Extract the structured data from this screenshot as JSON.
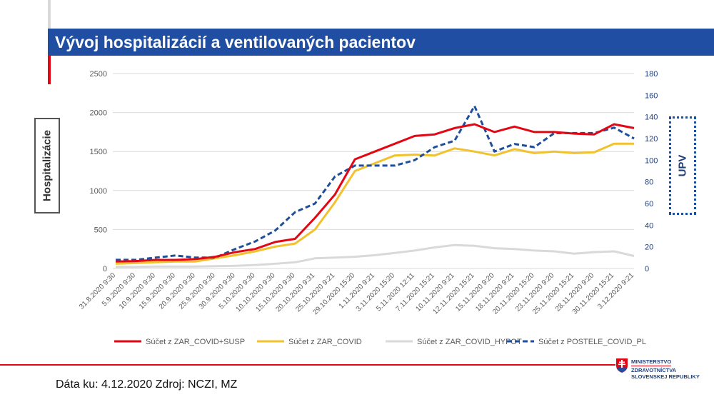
{
  "title": "Vývoj hospitalizácií a ventilovaných pacientov",
  "left_box_label": "Hospitalizácie",
  "right_box_label": "UPV",
  "footer": "Dáta ku: 4.12.2020 Zdroj: NCZI, MZ",
  "logo": {
    "line1": "MINISTERSTVO",
    "line2": "ZDRAVOTNÍCTVA",
    "line3": "SLOVENSKEJ REPUBLIKY"
  },
  "chart_data": {
    "type": "line",
    "title": "",
    "grid": true,
    "legend_position": "bottom",
    "y_left": {
      "range": [
        0,
        2500
      ],
      "ticks": [
        0,
        500,
        1000,
        1500,
        2000,
        2500
      ]
    },
    "y_right": {
      "range": [
        0,
        180
      ],
      "ticks": [
        0,
        20,
        40,
        60,
        80,
        100,
        120,
        140,
        160,
        180
      ]
    },
    "categories": [
      "31.8.2020 9:30",
      "5.9.2020 9:30",
      "10.9.2020 9:30",
      "15.9.2020 9:30",
      "20.9.2020 9:30",
      "25.9.2020 9:30",
      "30.9.2020 9:30",
      "5.10.2020 9:30",
      "10.10.2020 9:30",
      "15.10.2020 9:30",
      "20.10.2020 9:31",
      "25.10.2020 9:21",
      "29.10.2020 15:20",
      "1.11.2020 9:21",
      "3.11.2020 15:20",
      "5.11.2020 12:11",
      "7.11.2020 15:21",
      "10.11.2020 9:21",
      "12.11.2020 15:21",
      "15.11.2020 9:20",
      "18.11.2020 9:21",
      "20.11.2020 15:20",
      "23.11.2020 9:20",
      "25.11.2020 15:21",
      "28.11.2020 9:20",
      "30.11.2020 15:21",
      "3.12.2020 9:21"
    ],
    "series": [
      {
        "name": "Súčet z ZAR_COVID+SUSP",
        "axis": "left",
        "color": "#e30613",
        "style": "solid",
        "values": [
          90,
          95,
          110,
          110,
          120,
          150,
          210,
          250,
          340,
          380,
          650,
          950,
          1400,
          1500,
          1600,
          1700,
          1720,
          1800,
          1850,
          1750,
          1820,
          1750,
          1750,
          1730,
          1720,
          1850,
          1800
        ]
      },
      {
        "name": "Súčet z ZAR_COVID",
        "axis": "left",
        "color": "#f2c12e",
        "style": "solid",
        "values": [
          60,
          70,
          80,
          90,
          90,
          130,
          170,
          220,
          280,
          320,
          500,
          850,
          1250,
          1350,
          1450,
          1460,
          1450,
          1540,
          1500,
          1450,
          1530,
          1480,
          1500,
          1480,
          1490,
          1600,
          1600
        ]
      },
      {
        "name": "Súčet z ZAR_COVID_HYPOT",
        "axis": "left",
        "color": "#d9d9d9",
        "style": "solid",
        "values": [
          20,
          20,
          25,
          25,
          25,
          30,
          35,
          45,
          60,
          80,
          130,
          140,
          150,
          170,
          200,
          230,
          270,
          300,
          290,
          260,
          250,
          230,
          220,
          190,
          210,
          220,
          160
        ]
      },
      {
        "name": "Súčet z POSTELE_COVID_PL",
        "axis": "right",
        "color": "#1f4e9a",
        "style": "dashed",
        "values": [
          8,
          8,
          10,
          12,
          10,
          10,
          18,
          25,
          35,
          52,
          60,
          85,
          95,
          95,
          95,
          100,
          112,
          118,
          150,
          108,
          115,
          112,
          125,
          125,
          125,
          130,
          120
        ]
      }
    ]
  }
}
